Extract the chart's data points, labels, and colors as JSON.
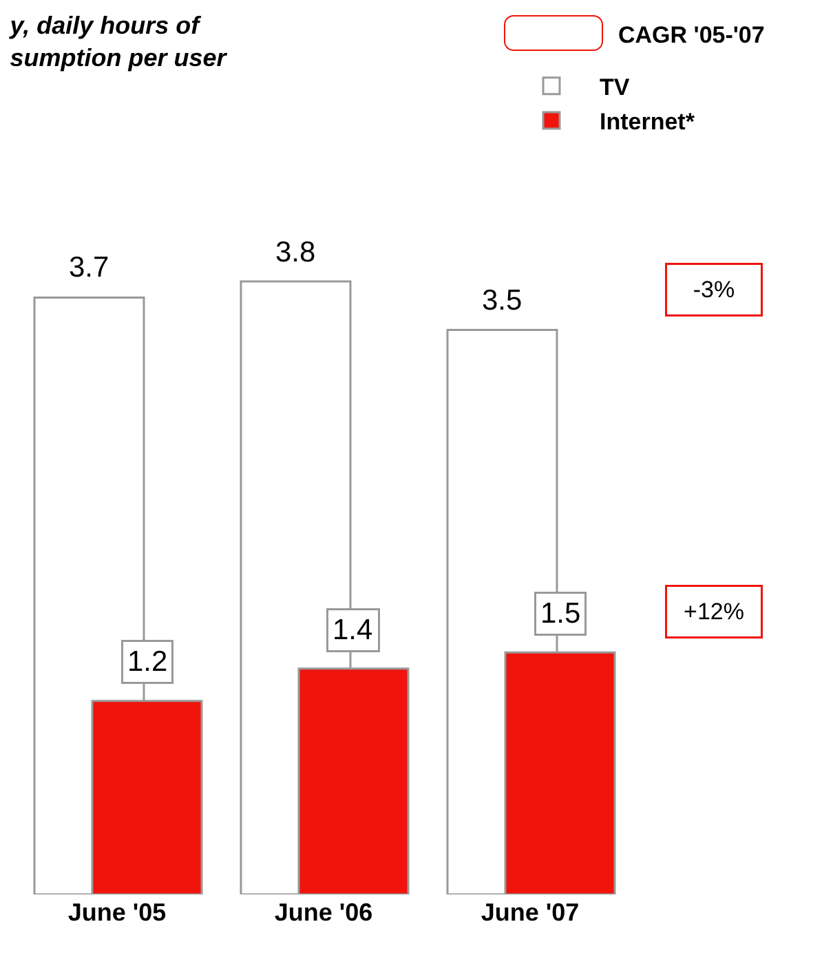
{
  "chart_data": {
    "type": "bar",
    "title": "y, daily hours of\nsumption per user",
    "categories": [
      "June '05",
      "June '06",
      "June '07"
    ],
    "series": [
      {
        "name": "TV",
        "color": "#ffffff",
        "values": [
          3.7,
          3.8,
          3.5
        ]
      },
      {
        "name": "Internet*",
        "color": "#f0140c",
        "values": [
          1.2,
          1.4,
          1.5
        ]
      }
    ],
    "data_labels": true,
    "legend": "top right",
    "annotations": [
      "CAGR '05-'07",
      "-3%",
      "+12%"
    ]
  }
}
